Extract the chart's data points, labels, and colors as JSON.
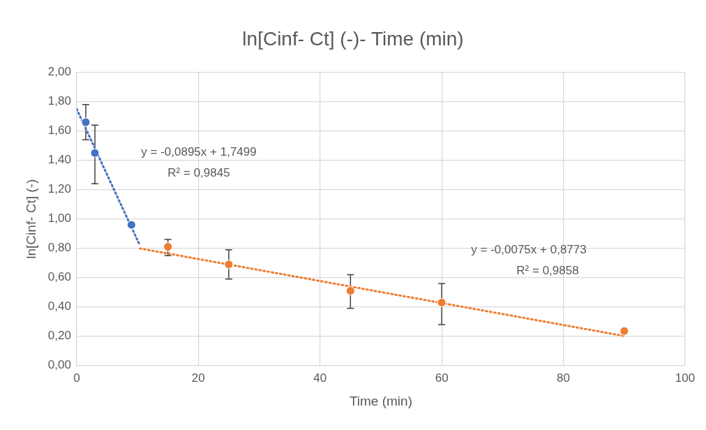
{
  "chart_data": {
    "type": "scatter",
    "title": "ln[Cinf- Ct] (-)- Time (min)",
    "xlabel": "Time (min)",
    "ylabel": "ln[Cinf- Ct] (-)",
    "xlim": [
      0,
      100
    ],
    "xticks": [
      0,
      20,
      40,
      60,
      80,
      100
    ],
    "ylim": [
      0,
      2
    ],
    "yticks": [
      {
        "value": 0,
        "label": "0,00"
      },
      {
        "value": 0.2,
        "label": "0,20"
      },
      {
        "value": 0.4,
        "label": "0,40"
      },
      {
        "value": 0.6,
        "label": "0,60"
      },
      {
        "value": 0.8,
        "label": "0,80"
      },
      {
        "value": 1,
        "label": "1,00"
      },
      {
        "value": 1.2,
        "label": "1,20"
      },
      {
        "value": 1.4,
        "label": "1,40"
      },
      {
        "value": 1.6,
        "label": "1,60"
      },
      {
        "value": 1.8,
        "label": "1,80"
      },
      {
        "value": 2,
        "label": "2,00"
      }
    ],
    "grid": true,
    "legend": false,
    "marker": "circle",
    "series": [
      {
        "type": "scatter",
        "color": "#4472c4",
        "x": [
          1.5,
          3,
          9
        ],
        "values": [
          1.66,
          1.45,
          0.96
        ],
        "errors": [
          [
            1.54,
            1.78
          ],
          [
            1.24,
            1.64
          ],
          null
        ]
      },
      {
        "type": "scatter",
        "color": "#ed7d31",
        "x": [
          15,
          25,
          45,
          60,
          90
        ],
        "values": [
          0.81,
          0.69,
          0.51,
          0.43,
          0.236
        ],
        "errors": [
          [
            0.75,
            0.86
          ],
          [
            0.59,
            0.79
          ],
          [
            0.39,
            0.62
          ],
          [
            0.28,
            0.56
          ],
          null
        ]
      },
      {
        "type": "line",
        "color": "#4472c4",
        "line_style": "dotted",
        "marker": "none",
        "x": [
          0,
          10.4
        ],
        "values": [
          1.75,
          0.819
        ]
      },
      {
        "type": "line",
        "color": "#ed7d31",
        "line_style": "dotted",
        "marker": "none",
        "x": [
          10.4,
          90
        ],
        "values": [
          0.799,
          0.202
        ]
      }
    ],
    "annotations": [
      "y = -0,0895x + 1,7499",
      "R² = 0,9845",
      "y = -0,0075x + 0,8773",
      "R² = 0,9858"
    ]
  }
}
